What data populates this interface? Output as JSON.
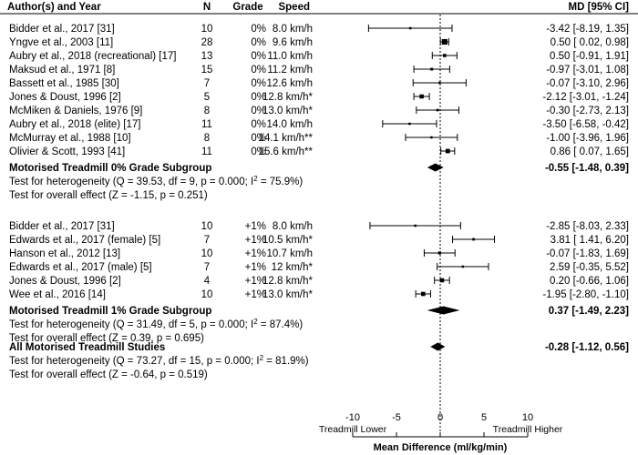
{
  "chart_data": {
    "type": "forest",
    "title": "",
    "headers": {
      "study": "Author(s) and Year",
      "n": "N",
      "grade": "Grade",
      "speed": "Speed",
      "effect": "MD [95% CI]"
    },
    "xlabel": "Mean Difference (ml/kg/min)",
    "direction_left": "Treadmill Lower",
    "direction_right": "Treadmill Higher",
    "xlim": [
      -10,
      10
    ],
    "xticks": [
      -10,
      -5,
      0,
      5,
      10
    ],
    "reference_line": 0,
    "subgroups": [
      {
        "studies": [
          {
            "study": "Bidder et al., 2017 [31]",
            "n": "10",
            "grade": "0%",
            "speed": "8.0 km/h",
            "md": -3.42,
            "lo": -8.19,
            "hi": 1.35,
            "ci_text": "-3.42 [-8.19,  1.35]"
          },
          {
            "study": "Yngve et al., 2003 [11]",
            "n": "28",
            "grade": "0%",
            "speed": "9.6 km/h",
            "md": 0.5,
            "lo": 0.02,
            "hi": 0.98,
            "ci_text": "0.50 [ 0.02,  0.98]"
          },
          {
            "study": "Aubry et al., 2018 (recreational) [17]",
            "n": "13",
            "grade": "0%",
            "speed": "11.0 km/h",
            "md": 0.5,
            "lo": -0.91,
            "hi": 1.91,
            "ci_text": "0.50 [-0.91,  1.91]"
          },
          {
            "study": "Maksud et al., 1971 [8]",
            "n": "15",
            "grade": "0%",
            "speed": "11.2 km/h",
            "md": -0.97,
            "lo": -3.01,
            "hi": 1.08,
            "ci_text": "-0.97 [-3.01,  1.08]"
          },
          {
            "study": "Bassett et al., 1985 [30]",
            "n": "7",
            "grade": "0%",
            "speed": "12.6 km/h",
            "md": -0.07,
            "lo": -3.1,
            "hi": 2.96,
            "ci_text": "-0.07 [-3.10,  2.96]"
          },
          {
            "study": "Jones & Doust, 1996 [2]",
            "n": "5",
            "grade": "0%",
            "speed": "12.8 km/h*",
            "md": -2.12,
            "lo": -3.01,
            "hi": -1.24,
            "ci_text": "-2.12 [-3.01, -1.24]"
          },
          {
            "study": "McMiken & Daniels, 1976 [9]",
            "n": "8",
            "grade": "0%",
            "speed": "13.0 km/h*",
            "md": -0.3,
            "lo": -2.73,
            "hi": 2.13,
            "ci_text": "-0.30 [-2.73,  2.13]"
          },
          {
            "study": "Aubry et al., 2018 (elite) [17]",
            "n": "11",
            "grade": "0%",
            "speed": "14.0 km/h",
            "md": -3.5,
            "lo": -6.58,
            "hi": -0.42,
            "ci_text": "-3.50 [-6.58, -0.42]"
          },
          {
            "study": "McMurray et al., 1988 [10]",
            "n": "8",
            "grade": "0%",
            "speed": "14.1 km/h**",
            "md": -1.0,
            "lo": -3.96,
            "hi": 1.96,
            "ci_text": "-1.00 [-3.96,  1.96]"
          },
          {
            "study": "Olivier & Scott, 1993 [41]",
            "n": "11",
            "grade": "0%",
            "speed": "15.6 km/h**",
            "md": 0.86,
            "lo": 0.07,
            "hi": 1.65,
            "ci_text": "0.86 [ 0.07,  1.65]"
          }
        ],
        "summary": {
          "label": "Motorised Treadmill 0% Grade Subgroup",
          "md": -0.55,
          "lo": -1.48,
          "hi": 0.39,
          "ci_text": "-0.55 [-1.48, 0.39]"
        },
        "heterogeneity": {
          "before": "Test for heterogeneity (Q = 39.53, df = 9, p = 0.000; I",
          "sup": "2",
          "after": " = 75.9%)"
        },
        "overall_effect": "Test for overall effect (Z = -1.15, p = 0.251)"
      },
      {
        "studies": [
          {
            "study": "Bidder et al., 2017 [31]",
            "n": "10",
            "grade": "+1%",
            "speed": "8.0 km/h",
            "md": -2.85,
            "lo": -8.03,
            "hi": 2.33,
            "ci_text": "-2.85 [-8.03,  2.33]"
          },
          {
            "study": "Edwards et al., 2017 (female) [5]",
            "n": "7",
            "grade": "+1%",
            "speed": "10.5 km/h*",
            "md": 3.81,
            "lo": 1.41,
            "hi": 6.2,
            "ci_text": "3.81 [ 1.41,  6.20]"
          },
          {
            "study": "Hanson et al., 2012 [13]",
            "n": "10",
            "grade": "+1%",
            "speed": "10.7 km/h",
            "md": -0.07,
            "lo": -1.83,
            "hi": 1.69,
            "ci_text": "-0.07 [-1.83,  1.69]"
          },
          {
            "study": "Edwards et al., 2017 (male) [5]",
            "n": "7",
            "grade": "+1%",
            "speed": "12 km/h*",
            "md": 2.59,
            "lo": -0.35,
            "hi": 5.52,
            "ci_text": "2.59 [-0.35,  5.52]"
          },
          {
            "study": "Jones & Doust, 1996 [2]",
            "n": "4",
            "grade": "+1%",
            "speed": "12.8 km/h*",
            "md": 0.2,
            "lo": -0.66,
            "hi": 1.06,
            "ci_text": "0.20 [-0.66,  1.06]"
          },
          {
            "study": "Wee et al., 2016 [14]",
            "n": "10",
            "grade": "+1%",
            "speed": "13.0 km/h*",
            "md": -1.95,
            "lo": -2.8,
            "hi": -1.1,
            "ci_text": "-1.95 [-2.80, -1.10]"
          }
        ],
        "summary": {
          "label": "Motorised Treadmill 1% Grade Subgroup",
          "md": 0.37,
          "lo": -1.49,
          "hi": 2.23,
          "ci_text": "0.37 [-1.49, 2.23]"
        },
        "heterogeneity": {
          "before": "Test for heterogeneity (Q = 31.49, df = 5, p = 0.000; I",
          "sup": "2",
          "after": " = 87.4%)"
        },
        "overall_effect": "Test for overall effect (Z = 0.39, p = 0.695)"
      }
    ],
    "overall": {
      "summary": {
        "label": "All Motorised Treadmill Studies",
        "md": -0.28,
        "lo": -1.12,
        "hi": 0.56,
        "ci_text": "-0.28 [-1.12, 0.56]"
      },
      "heterogeneity": {
        "before": "Test for heterogeneity (Q = 73.27, df = 15, p = 0.000; I",
        "sup": "2",
        "after": " = 81.9%)"
      },
      "overall_effect": "Test for overall effect (Z = -0.64, p = 0.519)"
    }
  }
}
